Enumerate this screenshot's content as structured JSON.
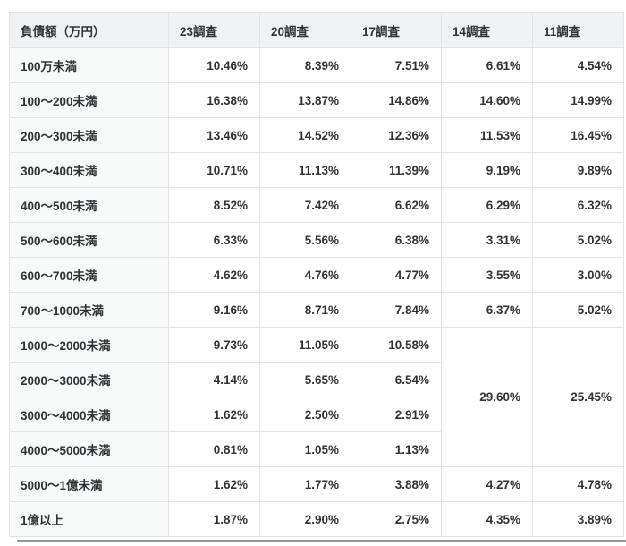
{
  "table": {
    "title_semantic": "debt-amount-distribution-by-survey",
    "headers": [
      "負債額（万円）",
      "23調査",
      "20調査",
      "17調査",
      "14調査",
      "11調査"
    ],
    "rows": [
      {
        "label": "100万未満",
        "cells": [
          {
            "v": "10.46%"
          },
          {
            "v": "8.39%"
          },
          {
            "v": "7.51%"
          },
          {
            "v": "6.61%"
          },
          {
            "v": "4.54%"
          }
        ]
      },
      {
        "label": "100〜200未満",
        "cells": [
          {
            "v": "16.38%"
          },
          {
            "v": "13.87%"
          },
          {
            "v": "14.86%"
          },
          {
            "v": "14.60%"
          },
          {
            "v": "14.99%"
          }
        ]
      },
      {
        "label": "200〜300未満",
        "cells": [
          {
            "v": "13.46%"
          },
          {
            "v": "14.52%"
          },
          {
            "v": "12.36%"
          },
          {
            "v": "11.53%"
          },
          {
            "v": "16.45%"
          }
        ]
      },
      {
        "label": "300〜400未満",
        "cells": [
          {
            "v": "10.71%"
          },
          {
            "v": "11.13%"
          },
          {
            "v": "11.39%"
          },
          {
            "v": "9.19%"
          },
          {
            "v": "9.89%"
          }
        ]
      },
      {
        "label": "400〜500未満",
        "cells": [
          {
            "v": "8.52%"
          },
          {
            "v": "7.42%"
          },
          {
            "v": "6.62%"
          },
          {
            "v": "6.29%"
          },
          {
            "v": "6.32%"
          }
        ]
      },
      {
        "label": "500〜600未満",
        "cells": [
          {
            "v": "6.33%"
          },
          {
            "v": "5.56%"
          },
          {
            "v": "6.38%"
          },
          {
            "v": "3.31%"
          },
          {
            "v": "5.02%"
          }
        ]
      },
      {
        "label": "600〜700未満",
        "cells": [
          {
            "v": "4.62%"
          },
          {
            "v": "4.76%"
          },
          {
            "v": "4.77%"
          },
          {
            "v": "3.55%"
          },
          {
            "v": "3.00%"
          }
        ]
      },
      {
        "label": "700〜1000未満",
        "cells": [
          {
            "v": "9.16%"
          },
          {
            "v": "8.71%"
          },
          {
            "v": "7.84%"
          },
          {
            "v": "6.37%"
          },
          {
            "v": "5.02%"
          }
        ]
      },
      {
        "label": "1000〜2000未満",
        "cells": [
          {
            "v": "9.73%"
          },
          {
            "v": "11.05%"
          },
          {
            "v": "10.58%"
          },
          {
            "v": "29.60%",
            "rowspan": 4
          },
          {
            "v": "25.45%",
            "rowspan": 4
          }
        ]
      },
      {
        "label": "2000〜3000未満",
        "cells": [
          {
            "v": "4.14%"
          },
          {
            "v": "5.65%"
          },
          {
            "v": "6.54%"
          }
        ]
      },
      {
        "label": "3000〜4000未満",
        "cells": [
          {
            "v": "1.62%"
          },
          {
            "v": "2.50%"
          },
          {
            "v": "2.91%"
          }
        ]
      },
      {
        "label": "4000〜5000未満",
        "cells": [
          {
            "v": "0.81%"
          },
          {
            "v": "1.05%"
          },
          {
            "v": "1.13%"
          }
        ]
      },
      {
        "label": "5000〜1億未満",
        "cells": [
          {
            "v": "1.62%"
          },
          {
            "v": "1.77%"
          },
          {
            "v": "3.88%"
          },
          {
            "v": "4.27%"
          },
          {
            "v": "4.78%"
          }
        ]
      },
      {
        "label": "1億以上",
        "cells": [
          {
            "v": "1.87%"
          },
          {
            "v": "2.90%"
          },
          {
            "v": "2.75%"
          },
          {
            "v": "4.35%"
          },
          {
            "v": "3.89%"
          }
        ]
      }
    ],
    "colors": {
      "header_bg": "#f0f1f3",
      "label_bg": "#f8f9f9",
      "cell_bg": "#ffffff",
      "border": "#e2e3e6",
      "text": "#303235",
      "bottom_divider": "#94979b"
    }
  }
}
